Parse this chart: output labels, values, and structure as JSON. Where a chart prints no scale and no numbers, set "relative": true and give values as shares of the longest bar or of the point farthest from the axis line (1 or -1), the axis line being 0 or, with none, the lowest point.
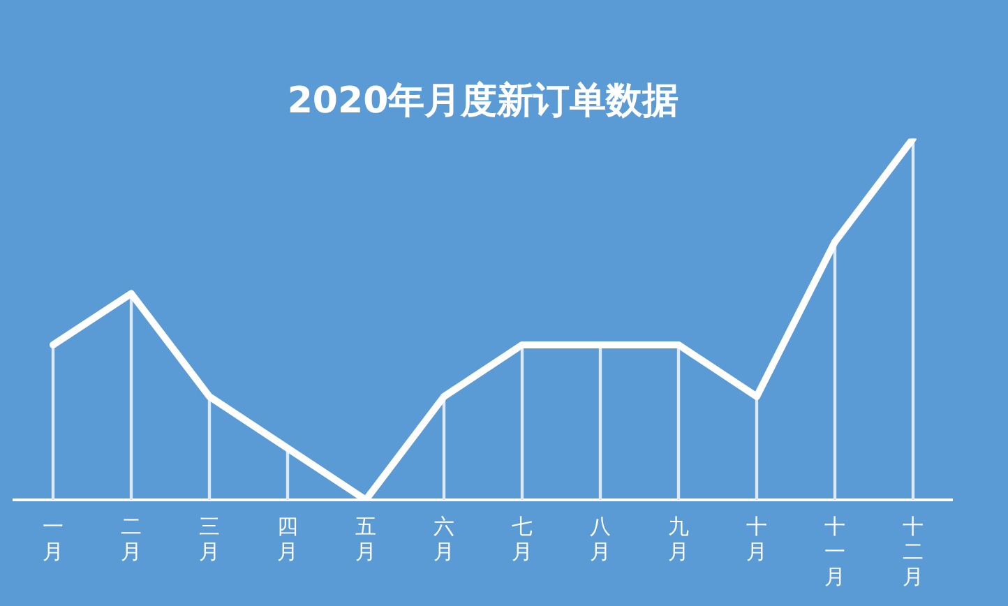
{
  "chart_data": {
    "type": "line",
    "title": "2020年月度新订单数据",
    "relative": true,
    "categories": [
      "一月",
      "二月",
      "三月",
      "四月",
      "五月",
      "六月",
      "七月",
      "八月",
      "九月",
      "十月",
      "十一月",
      "十二月"
    ],
    "series": [
      {
        "color": "#ffffff",
        "values": [
          0.429,
          0.571,
          0.286,
          0.143,
          0,
          0.286,
          0.429,
          0.429,
          0.429,
          0.286,
          0.714,
          1
        ]
      },
      {
        "type": "bar",
        "color": "#dce9f6",
        "values": [
          0.429,
          0.571,
          0.286,
          0.143,
          0,
          0.286,
          0.429,
          0.429,
          0.429,
          0.286,
          0.714,
          1
        ]
      }
    ],
    "legend": false,
    "marker": "none",
    "line_style": "solid"
  }
}
